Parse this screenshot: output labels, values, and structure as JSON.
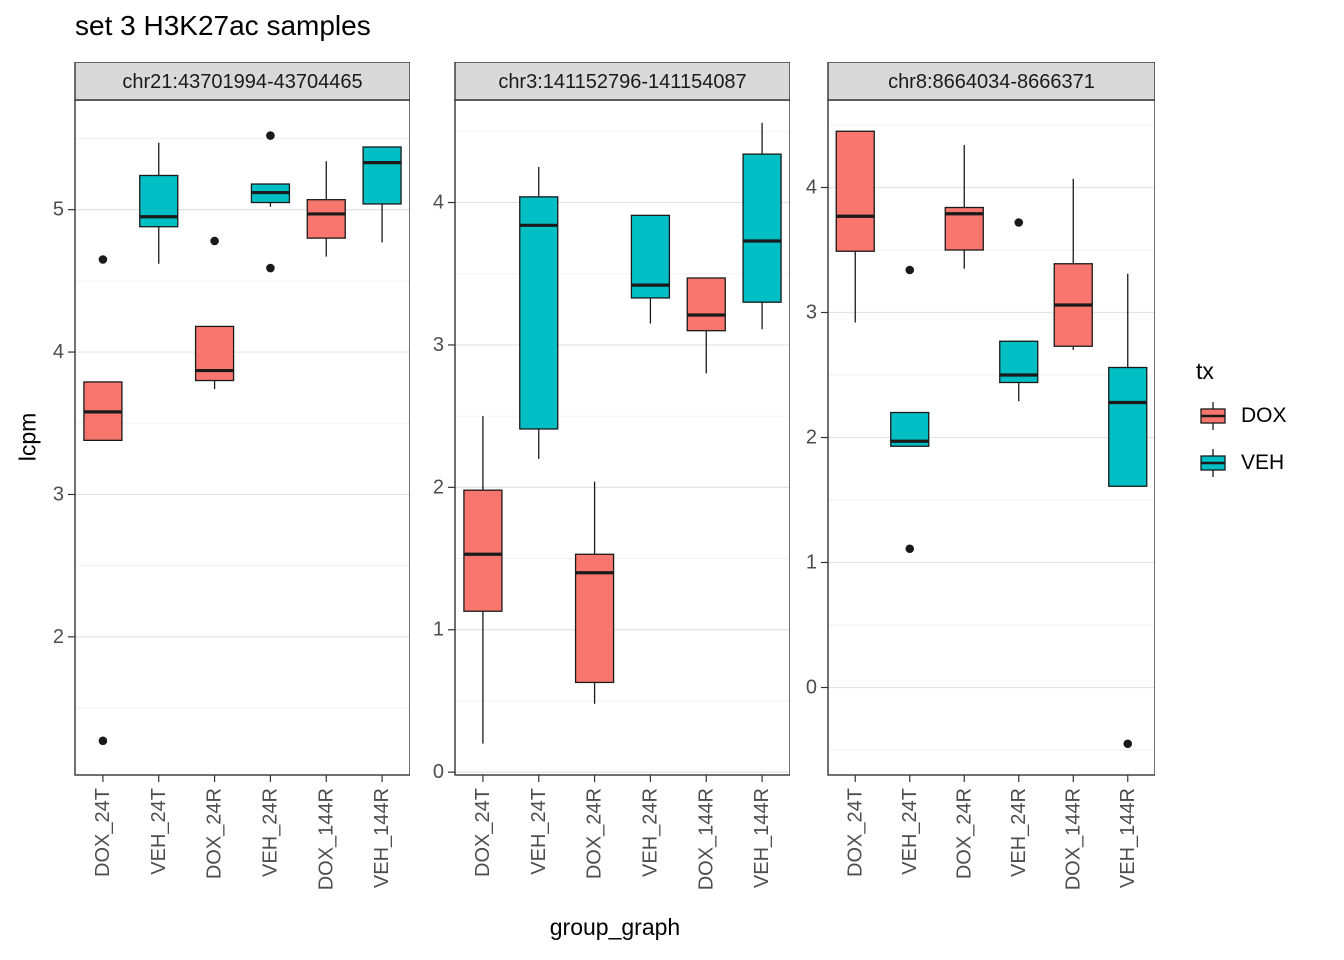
{
  "title": "set 3 H3K27ac samples",
  "axes": {
    "x_title": "group_graph",
    "y_title": "lcpm"
  },
  "legend": {
    "title": "tx",
    "items": [
      {
        "label": "DOX",
        "color": "#F8766D"
      },
      {
        "label": "VEH",
        "color": "#00BFC4"
      }
    ]
  },
  "style": {
    "strip_bg": "#D9D9D9",
    "panel_border": "#333333",
    "grid_major": "#E3E3E3",
    "grid_minor": "#F2F2F2",
    "box_stroke": "#1A1A1A",
    "tick_text": "#4D4D4D"
  },
  "chart_data": {
    "type": "boxplot",
    "title": "set 3 H3K27ac samples",
    "xlabel": "group_graph",
    "ylabel": "lcpm",
    "legend_title": "tx",
    "categories": [
      "DOX_24T",
      "VEH_24T",
      "DOX_24R",
      "VEH_24R",
      "DOX_144R",
      "VEH_144R"
    ],
    "series_colors": {
      "DOX": "#F8766D",
      "VEH": "#00BFC4"
    },
    "facets": [
      {
        "label": "chr21:43701994-43704465",
        "ylim": [
          1.03,
          5.77
        ],
        "yticks": [
          2,
          3,
          4,
          5
        ],
        "boxes": [
          {
            "category": "DOX_24T",
            "tx": "DOX",
            "whisker_low": 3.38,
            "q1": 3.38,
            "median": 3.58,
            "q3": 3.79,
            "whisker_high": 3.79,
            "outliers": [
              4.65,
              1.27
            ]
          },
          {
            "category": "VEH_24T",
            "tx": "VEH",
            "whisker_low": 4.62,
            "q1": 4.88,
            "median": 4.95,
            "q3": 5.24,
            "whisker_high": 5.47,
            "outliers": []
          },
          {
            "category": "DOX_24R",
            "tx": "DOX",
            "whisker_low": 3.74,
            "q1": 3.8,
            "median": 3.87,
            "q3": 4.18,
            "whisker_high": 4.18,
            "outliers": [
              4.78
            ]
          },
          {
            "category": "VEH_24R",
            "tx": "VEH",
            "whisker_low": 5.02,
            "q1": 5.05,
            "median": 5.12,
            "q3": 5.18,
            "whisker_high": 5.18,
            "outliers": [
              5.52,
              4.59
            ]
          },
          {
            "category": "DOX_144R",
            "tx": "DOX",
            "whisker_low": 4.67,
            "q1": 4.8,
            "median": 4.97,
            "q3": 5.07,
            "whisker_high": 5.34,
            "outliers": []
          },
          {
            "category": "VEH_144R",
            "tx": "VEH",
            "whisker_low": 4.77,
            "q1": 5.04,
            "median": 5.33,
            "q3": 5.44,
            "whisker_high": 5.44,
            "outliers": []
          }
        ]
      },
      {
        "label": "chr3:141152796-141154087",
        "ylim": [
          -0.02,
          4.72
        ],
        "yticks": [
          0,
          1,
          2,
          3,
          4
        ],
        "boxes": [
          {
            "category": "DOX_24T",
            "tx": "DOX",
            "whisker_low": 0.2,
            "q1": 1.13,
            "median": 1.53,
            "q3": 1.98,
            "whisker_high": 2.5,
            "outliers": []
          },
          {
            "category": "VEH_24T",
            "tx": "VEH",
            "whisker_low": 2.2,
            "q1": 2.41,
            "median": 3.84,
            "q3": 4.04,
            "whisker_high": 4.25,
            "outliers": []
          },
          {
            "category": "DOX_24R",
            "tx": "DOX",
            "whisker_low": 0.48,
            "q1": 0.63,
            "median": 1.4,
            "q3": 1.53,
            "whisker_high": 2.04,
            "outliers": []
          },
          {
            "category": "VEH_24R",
            "tx": "VEH",
            "whisker_low": 3.15,
            "q1": 3.33,
            "median": 3.42,
            "q3": 3.91,
            "whisker_high": 3.91,
            "outliers": []
          },
          {
            "category": "DOX_144R",
            "tx": "DOX",
            "whisker_low": 2.8,
            "q1": 3.1,
            "median": 3.21,
            "q3": 3.47,
            "whisker_high": 3.47,
            "outliers": []
          },
          {
            "category": "VEH_144R",
            "tx": "VEH",
            "whisker_low": 3.11,
            "q1": 3.3,
            "median": 3.73,
            "q3": 4.34,
            "whisker_high": 4.56,
            "outliers": []
          }
        ]
      },
      {
        "label": "chr8:8664034-8666371",
        "ylim": [
          -0.7,
          4.7
        ],
        "yticks": [
          0,
          1,
          2,
          3,
          4
        ],
        "boxes": [
          {
            "category": "DOX_24T",
            "tx": "DOX",
            "whisker_low": 2.92,
            "q1": 3.49,
            "median": 3.77,
            "q3": 4.45,
            "whisker_high": 4.45,
            "outliers": []
          },
          {
            "category": "VEH_24T",
            "tx": "VEH",
            "whisker_low": 1.93,
            "q1": 1.93,
            "median": 1.97,
            "q3": 2.2,
            "whisker_high": 2.2,
            "outliers": [
              3.34,
              1.11
            ]
          },
          {
            "category": "DOX_24R",
            "tx": "DOX",
            "whisker_low": 3.35,
            "q1": 3.5,
            "median": 3.79,
            "q3": 3.84,
            "whisker_high": 4.34,
            "outliers": []
          },
          {
            "category": "VEH_24R",
            "tx": "VEH",
            "whisker_low": 2.29,
            "q1": 2.44,
            "median": 2.5,
            "q3": 2.77,
            "whisker_high": 2.77,
            "outliers": [
              3.72
            ]
          },
          {
            "category": "DOX_144R",
            "tx": "DOX",
            "whisker_low": 2.7,
            "q1": 2.73,
            "median": 3.06,
            "q3": 3.39,
            "whisker_high": 4.07,
            "outliers": []
          },
          {
            "category": "VEH_144R",
            "tx": "VEH",
            "whisker_low": 1.61,
            "q1": 1.61,
            "median": 2.28,
            "q3": 2.56,
            "whisker_high": 3.31,
            "outliers": [
              -0.45
            ]
          }
        ]
      }
    ]
  }
}
